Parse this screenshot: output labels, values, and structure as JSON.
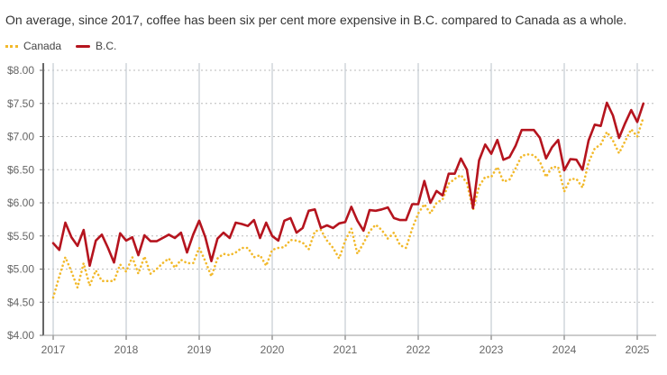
{
  "subtitle": "On average, since 2017, coffee has been six per cent more expensive in B.C. compared to Canada as a whole.",
  "chart_data": {
    "type": "line",
    "title": "",
    "xlabel": "",
    "ylabel": "",
    "x_start": "2017-01",
    "x_frequency": "monthly",
    "x_ticks": [
      "2017",
      "2018",
      "2019",
      "2020",
      "2021",
      "2022",
      "2023",
      "2024",
      "2025"
    ],
    "y_ticks": [
      "$4.00",
      "$4.50",
      "$5.00",
      "$5.50",
      "$6.00",
      "$6.50",
      "$7.00",
      "$7.50",
      "$8.00"
    ],
    "ylim": [
      4,
      8
    ],
    "grid": true,
    "legend": "top-left",
    "series": [
      {
        "name": "Canada",
        "color": "#f2b92b",
        "style": "dotted",
        "values": [
          4.57,
          4.89,
          5.18,
          4.96,
          4.72,
          5.09,
          4.75,
          4.98,
          4.82,
          4.82,
          4.82,
          5.07,
          4.96,
          5.18,
          4.93,
          5.19,
          4.93,
          5.0,
          5.09,
          5.16,
          5.02,
          5.14,
          5.09,
          5.09,
          5.32,
          5.12,
          4.89,
          5.16,
          5.23,
          5.21,
          5.25,
          5.32,
          5.32,
          5.18,
          5.21,
          5.05,
          5.29,
          5.32,
          5.33,
          5.44,
          5.43,
          5.4,
          5.3,
          5.57,
          5.59,
          5.43,
          5.32,
          5.16,
          5.43,
          5.61,
          5.23,
          5.39,
          5.57,
          5.67,
          5.59,
          5.46,
          5.55,
          5.36,
          5.32,
          5.61,
          5.84,
          5.98,
          5.84,
          6.0,
          6.05,
          6.29,
          6.36,
          6.42,
          6.3,
          5.89,
          6.25,
          6.39,
          6.39,
          6.54,
          6.32,
          6.35,
          6.52,
          6.71,
          6.73,
          6.72,
          6.62,
          6.39,
          6.54,
          6.54,
          6.17,
          6.36,
          6.36,
          6.23,
          6.61,
          6.82,
          6.88,
          7.07,
          6.94,
          6.75,
          6.93,
          7.11,
          7.0,
          7.29
        ]
      },
      {
        "name": "B.C.",
        "color": "#b5141e",
        "style": "solid",
        "values": [
          5.39,
          5.29,
          5.7,
          5.48,
          5.35,
          5.59,
          5.05,
          5.43,
          5.52,
          5.32,
          5.1,
          5.54,
          5.43,
          5.48,
          5.21,
          5.51,
          5.42,
          5.42,
          5.47,
          5.52,
          5.47,
          5.55,
          5.25,
          5.52,
          5.73,
          5.48,
          5.12,
          5.46,
          5.55,
          5.47,
          5.7,
          5.68,
          5.65,
          5.74,
          5.47,
          5.7,
          5.5,
          5.43,
          5.73,
          5.77,
          5.55,
          5.62,
          5.88,
          5.9,
          5.62,
          5.66,
          5.62,
          5.69,
          5.71,
          5.94,
          5.73,
          5.58,
          5.89,
          5.88,
          5.9,
          5.93,
          5.77,
          5.74,
          5.74,
          5.98,
          5.98,
          6.33,
          6.0,
          6.18,
          6.11,
          6.44,
          6.44,
          6.67,
          6.5,
          5.92,
          6.64,
          6.88,
          6.74,
          6.95,
          6.65,
          6.69,
          6.86,
          7.1,
          7.1,
          7.1,
          6.98,
          6.67,
          6.84,
          6.95,
          6.49,
          6.66,
          6.65,
          6.5,
          6.94,
          7.18,
          7.16,
          7.51,
          7.32,
          6.98,
          7.2,
          7.4,
          7.22,
          7.5
        ]
      }
    ]
  }
}
